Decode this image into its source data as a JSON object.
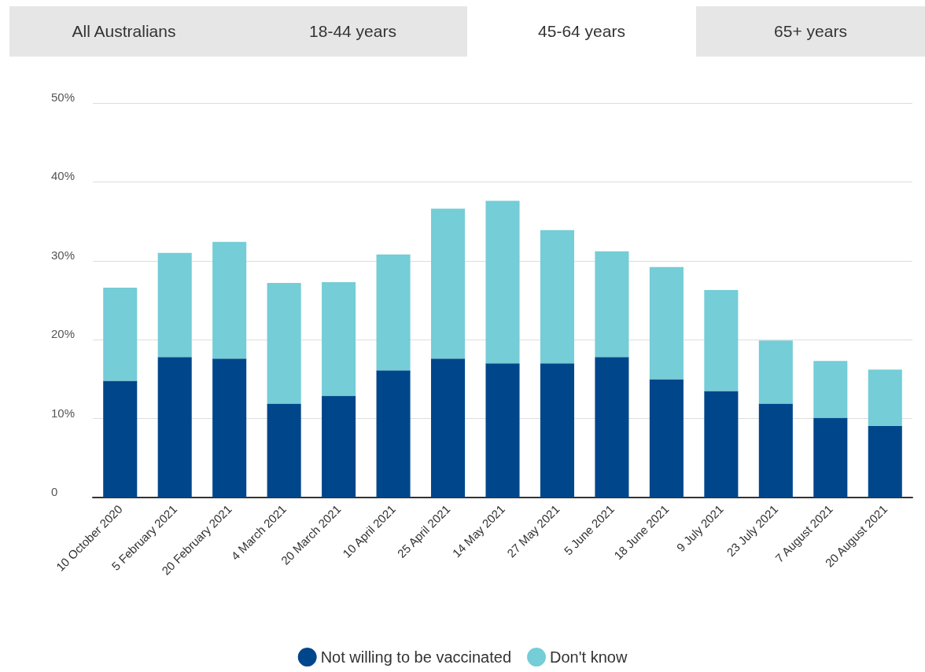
{
  "chart_data": {
    "type": "bar",
    "stacked": true,
    "annotations": [
      "All Australians",
      "18-44 years",
      "45-64 years",
      "65+ years"
    ],
    "categories": [
      "10 October 2020",
      "5 February 2021",
      "20 February 2021",
      "4 March 2021",
      "20 March 2021",
      "10 April 2021",
      "25 April 2021",
      "14 May 2021",
      "27 May 2021",
      "5 June 2021",
      "18 June 2021",
      "9 July 2021",
      "23 July 2021",
      "7 August 2021",
      "20 August 2021"
    ],
    "series": [
      {
        "name": "Not willing to be vaccinated",
        "color": "#00468b",
        "values": [
          14.8,
          17.8,
          17.6,
          11.9,
          12.9,
          16.1,
          17.6,
          17.0,
          17.0,
          17.8,
          15.0,
          13.5,
          11.9,
          10.1,
          9.1
        ]
      },
      {
        "name": "Don't know",
        "color": "#74cdd7",
        "values": [
          11.8,
          13.2,
          14.8,
          15.3,
          14.4,
          14.7,
          19.0,
          20.6,
          16.9,
          13.4,
          14.2,
          12.8,
          8.0,
          7.2,
          7.1
        ]
      }
    ],
    "ylim": [
      0,
      50
    ],
    "yticks": [
      0,
      {
        "value": 10,
        "label": "10%"
      },
      {
        "value": 20,
        "label": "20%"
      },
      {
        "value": 30,
        "label": "30%"
      },
      {
        "value": 40,
        "label": "40%"
      },
      {
        "value": 50,
        "label": "50%"
      }
    ],
    "grid": "y",
    "legend": "bottom"
  }
}
